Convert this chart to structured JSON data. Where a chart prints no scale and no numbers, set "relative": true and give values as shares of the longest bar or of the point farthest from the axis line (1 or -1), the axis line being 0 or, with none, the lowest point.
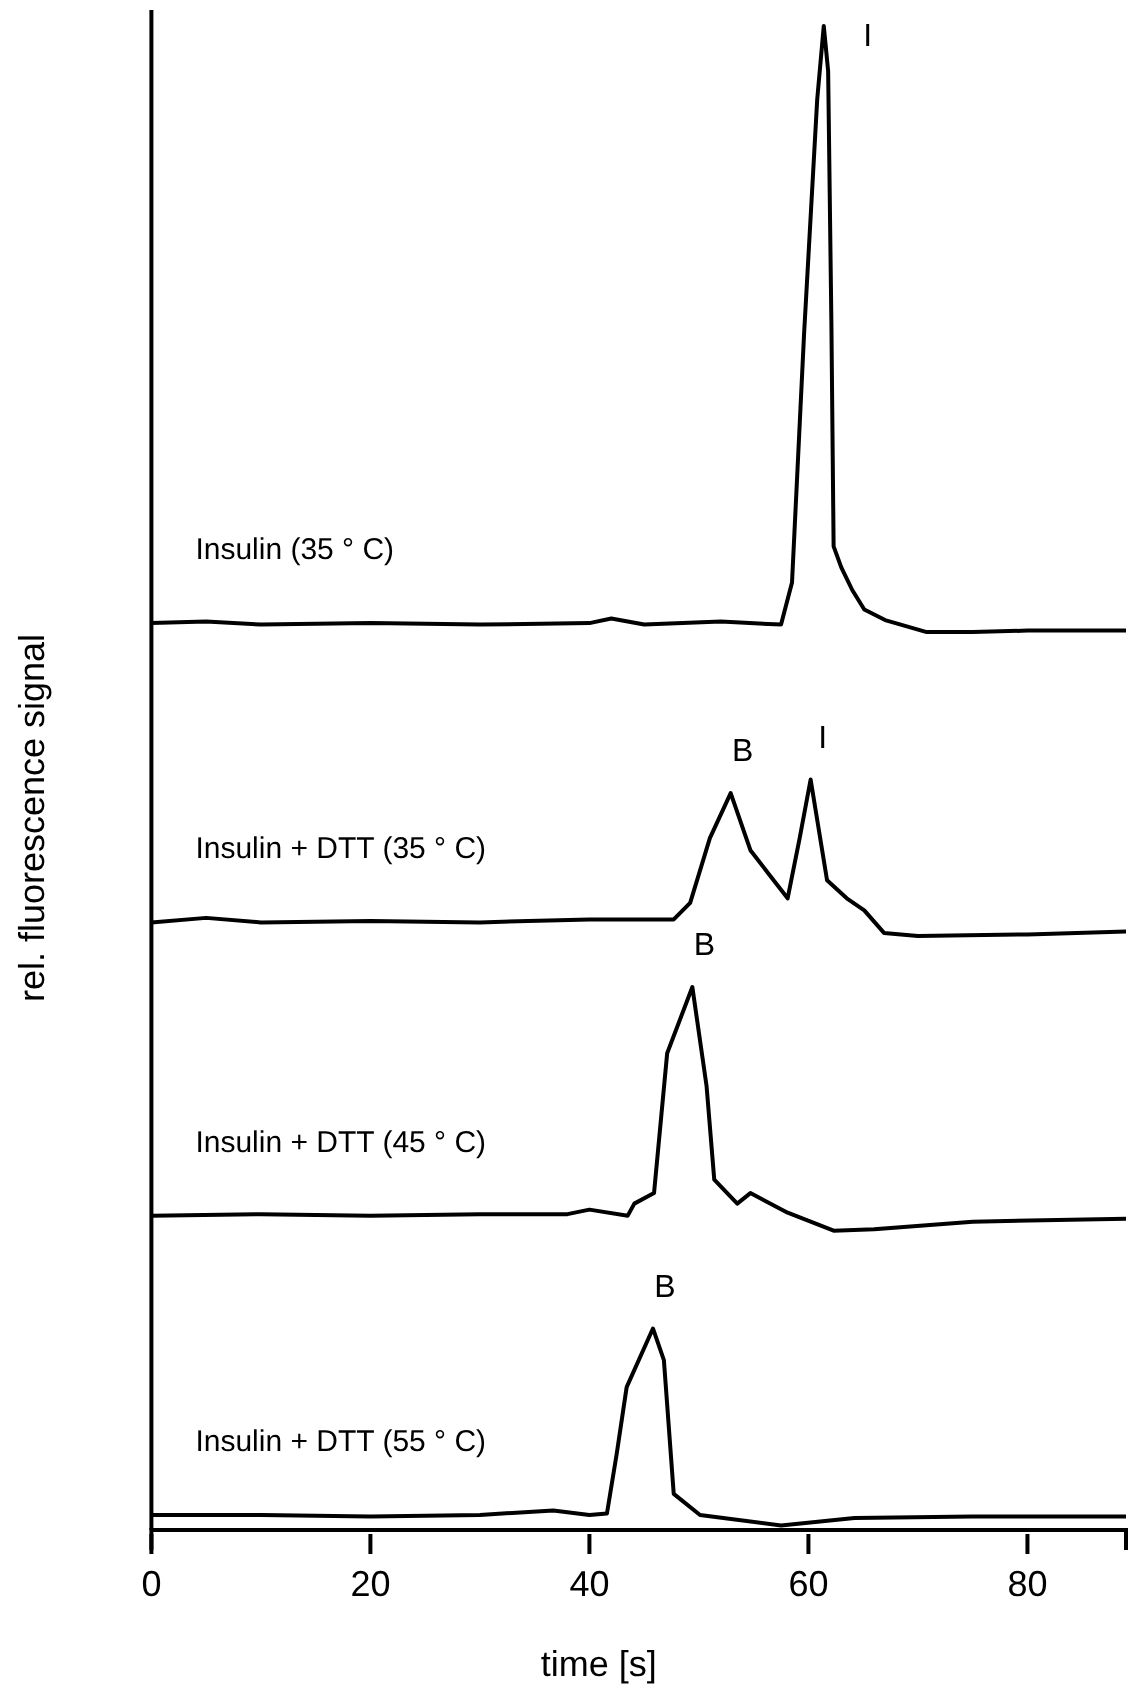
{
  "chart_data": {
    "type": "line",
    "relative": true,
    "xlabel": "time [s]",
    "ylabel": "rel. fluorescence signal",
    "xlim": [
      0,
      89
    ],
    "xticks": [
      0,
      20,
      40,
      60,
      80
    ],
    "legend": false,
    "grid": false,
    "marker": "none",
    "line_style": "solid",
    "series": [
      {
        "name": "Insulin (35 ° C)",
        "color": "#000000",
        "x": [
          0,
          5,
          10,
          20,
          30,
          40,
          42,
          45,
          52,
          57.5,
          58.5,
          59.6,
          60.8,
          61.4,
          61.8,
          62.1,
          62.3,
          63,
          64,
          65.1,
          67,
          70.8,
          75,
          80,
          89
        ],
        "values": [
          0.603,
          0.604,
          0.602,
          0.603,
          0.602,
          0.603,
          0.606,
          0.602,
          0.604,
          0.602,
          0.63,
          0.795,
          0.951,
          1.0,
          0.97,
          0.8,
          0.654,
          0.64,
          0.625,
          0.612,
          0.605,
          0.597,
          0.597,
          0.598,
          0.598
        ]
      },
      {
        "name": "Insulin + DTT (35 ° C)",
        "color": "#000000",
        "x": [
          0,
          5,
          10,
          20,
          30,
          40,
          47.7,
          49.2,
          51,
          52.9,
          54.7,
          56.5,
          58.1,
          59.2,
          60.2,
          61.7,
          63.5,
          65.1,
          66.9,
          70,
          80,
          89
        ],
        "values": [
          0.404,
          0.407,
          0.404,
          0.405,
          0.404,
          0.406,
          0.406,
          0.417,
          0.46,
          0.49,
          0.452,
          0.435,
          0.42,
          0.46,
          0.499,
          0.432,
          0.42,
          0.412,
          0.397,
          0.395,
          0.396,
          0.398
        ]
      },
      {
        "name": "Insulin + DTT (45 ° C)",
        "color": "#000000",
        "x": [
          0,
          10,
          20,
          30,
          38,
          40,
          43.5,
          44.1,
          45.9,
          47.1,
          49.4,
          50.7,
          51.4,
          53.5,
          54.7,
          58.1,
          62.3,
          66,
          75,
          89
        ],
        "values": [
          0.209,
          0.21,
          0.209,
          0.21,
          0.21,
          0.213,
          0.209,
          0.217,
          0.224,
          0.317,
          0.361,
          0.295,
          0.233,
          0.217,
          0.224,
          0.211,
          0.199,
          0.2,
          0.205,
          0.207
        ]
      },
      {
        "name": "Insulin + DTT (55 ° C)",
        "color": "#000000",
        "x": [
          0,
          10,
          20,
          30,
          36.7,
          40,
          41.6,
          42.5,
          43.4,
          45.8,
          46.8,
          47.7,
          50.1,
          57.5,
          64.2,
          75,
          89
        ],
        "values": [
          0.01,
          0.01,
          0.009,
          0.01,
          0.013,
          0.01,
          0.011,
          0.051,
          0.095,
          0.134,
          0.113,
          0.024,
          0.01,
          0.003,
          0.008,
          0.009,
          0.009
        ]
      }
    ],
    "annotations": [
      {
        "text": "I",
        "x": 61.4,
        "y": 1.0
      },
      {
        "text": "B",
        "x": 52.9,
        "y": 0.49
      },
      {
        "text": "I",
        "x": 60.2,
        "y": 0.499
      },
      {
        "text": "B",
        "x": 49.4,
        "y": 0.361
      },
      {
        "text": "B",
        "x": 45.8,
        "y": 0.134
      }
    ]
  }
}
